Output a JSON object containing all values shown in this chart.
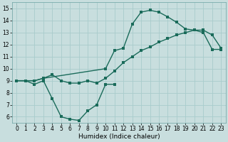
{
  "background_color": "#c8dede",
  "grid_color": "#a8cccc",
  "line_color": "#1a6b5a",
  "xlabel": "Humidex (Indice chaleur)",
  "xlim": [
    -0.5,
    23.5
  ],
  "ylim": [
    5.5,
    15.5
  ],
  "yticks": [
    6,
    7,
    8,
    9,
    10,
    11,
    12,
    13,
    14,
    15
  ],
  "xticks": [
    0,
    1,
    2,
    3,
    4,
    5,
    6,
    7,
    8,
    9,
    10,
    11,
    12,
    13,
    14,
    15,
    16,
    17,
    18,
    19,
    20,
    21,
    22,
    23
  ],
  "line1_x": [
    0,
    1,
    2,
    3,
    4,
    5,
    6,
    7,
    8,
    9,
    10,
    11
  ],
  "line1_y": [
    9.0,
    9.0,
    8.7,
    9.0,
    7.5,
    6.0,
    5.8,
    5.7,
    6.5,
    7.0,
    8.7,
    8.7
  ],
  "line2_x": [
    0,
    1,
    2,
    3,
    10,
    11,
    12,
    13,
    14,
    15,
    16,
    17,
    18,
    19,
    20,
    21,
    22,
    23
  ],
  "line2_y": [
    9.0,
    9.0,
    9.0,
    9.2,
    10.0,
    11.5,
    11.7,
    13.7,
    14.7,
    14.85,
    14.7,
    14.3,
    13.85,
    13.3,
    13.2,
    13.0,
    11.6,
    11.6
  ],
  "line3_x": [
    0,
    1,
    2,
    3,
    4,
    5,
    6,
    7,
    8,
    9,
    10,
    11,
    12,
    13,
    14,
    15,
    16,
    17,
    18,
    19,
    20,
    21,
    22,
    23
  ],
  "line3_y": [
    9.0,
    9.0,
    9.0,
    9.2,
    9.5,
    9.0,
    8.8,
    8.8,
    9.0,
    8.8,
    9.2,
    9.8,
    10.5,
    11.0,
    11.5,
    11.8,
    12.2,
    12.5,
    12.8,
    13.0,
    13.2,
    13.2,
    12.8,
    11.7
  ],
  "tick_fontsize": 5.5,
  "xlabel_fontsize": 6.5,
  "marker_size": 2.5,
  "linewidth": 1.0
}
